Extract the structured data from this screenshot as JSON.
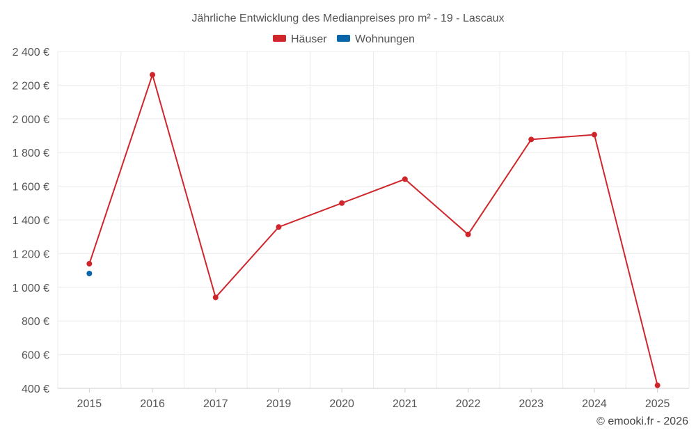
{
  "chart_data": {
    "type": "line",
    "title": "Jährliche Entwicklung des Medianpreises pro m² - 19 - Lascaux",
    "categories": [
      "2015",
      "2016",
      "2017",
      "2019",
      "2020",
      "2021",
      "2022",
      "2023",
      "2024",
      "2025"
    ],
    "series": [
      {
        "name": "Häuser",
        "color": "#d0262b",
        "values": [
          1140,
          2262,
          940,
          1358,
          1500,
          1642,
          1314,
          1878,
          1906,
          418
        ]
      },
      {
        "name": "Wohnungen",
        "color": "#0866a8",
        "values": [
          1082,
          null,
          null,
          null,
          null,
          null,
          null,
          null,
          null,
          null
        ]
      }
    ],
    "ylim": [
      400,
      2400
    ],
    "yticks": [
      2400,
      2200,
      2000,
      1800,
      1600,
      1400,
      1200,
      1000,
      800,
      600,
      400
    ],
    "ytick_labels": [
      "2 400 €",
      "2 200 €",
      "2 000 €",
      "1 800 €",
      "1 600 €",
      "1 400 €",
      "1 200 €",
      "1 000 €",
      "800 €",
      "600 €",
      "400 €"
    ],
    "xlabel": "",
    "ylabel": "",
    "grid": true,
    "legend_position": "top-center"
  },
  "legend": {
    "houses": "Häuser",
    "apartments": "Wohnungen"
  },
  "footer": "© emooki.fr - 2026"
}
